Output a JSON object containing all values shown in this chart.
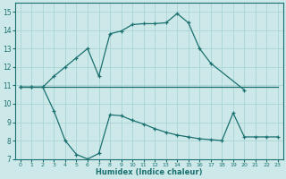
{
  "bg_color": "#cde8e8",
  "line_color": "#1a7070",
  "grid_color": "#aad4d4",
  "xlabel": "Humidex (Indice chaleur)",
  "xlim": [
    -0.5,
    23.5
  ],
  "ylim": [
    7,
    15.5
  ],
  "yticks": [
    7,
    8,
    9,
    10,
    11,
    12,
    13,
    14,
    15
  ],
  "xticks": [
    0,
    1,
    2,
    3,
    4,
    5,
    6,
    7,
    8,
    9,
    10,
    11,
    12,
    13,
    14,
    15,
    16,
    17,
    18,
    19,
    20,
    21,
    22,
    23
  ],
  "line1_x": [
    0,
    1,
    2,
    3,
    4,
    5,
    6,
    7,
    8,
    9,
    10,
    11,
    12,
    13,
    14,
    15,
    16,
    17,
    20
  ],
  "line1_y": [
    10.9,
    10.9,
    10.9,
    11.5,
    12.0,
    12.5,
    13.0,
    11.5,
    13.8,
    13.95,
    14.3,
    14.35,
    14.35,
    14.4,
    14.9,
    14.4,
    13.0,
    12.2,
    10.75
  ],
  "line2_x": [
    0,
    1,
    2,
    3,
    4,
    5,
    6,
    7,
    8,
    9,
    10,
    11,
    12,
    13,
    14,
    15,
    16,
    17,
    18,
    19,
    20,
    21,
    22,
    23
  ],
  "line2_y": [
    10.9,
    10.9,
    10.9,
    10.9,
    10.9,
    10.9,
    10.9,
    10.9,
    10.9,
    10.9,
    10.9,
    10.9,
    10.9,
    10.9,
    10.9,
    10.9,
    10.9,
    10.9,
    10.9,
    10.9,
    10.9,
    10.9,
    10.9,
    10.9
  ],
  "line3_x": [
    0,
    1,
    2,
    3,
    4,
    5,
    6,
    7,
    8,
    9,
    10,
    11,
    12,
    13,
    14,
    15,
    16,
    17,
    18,
    19,
    20,
    21,
    22,
    23
  ],
  "line3_y": [
    10.9,
    10.9,
    10.9,
    9.6,
    8.0,
    7.25,
    7.0,
    7.3,
    9.4,
    9.35,
    9.1,
    8.9,
    8.65,
    8.45,
    8.3,
    8.2,
    8.1,
    8.05,
    8.0,
    9.5,
    8.2,
    8.2,
    8.2,
    8.2
  ]
}
